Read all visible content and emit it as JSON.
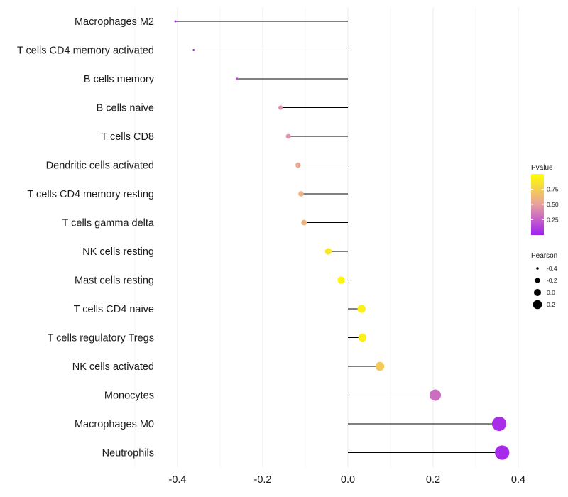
{
  "chart_data": {
    "type": "lollipop",
    "categories": [
      "Macrophages M2",
      "T cells CD4 memory activated",
      "B cells memory",
      "B cells naive",
      "T cells CD8",
      "Dendritic cells activated",
      "T cells CD4 memory resting",
      "T cells gamma delta",
      "NK cells resting",
      "Mast cells resting",
      "T cells CD4 naive",
      "T cells regulatory  Tregs",
      "NK cells activated",
      "Monocytes",
      "Macrophages M0",
      "Neutrophils"
    ],
    "pearson": [
      -0.405,
      -0.362,
      -0.26,
      -0.158,
      -0.14,
      -0.117,
      -0.11,
      -0.103,
      -0.046,
      -0.016,
      0.032,
      0.034,
      0.075,
      0.205,
      0.355,
      0.362
    ],
    "pvalue": [
      0.02,
      0.05,
      0.2,
      0.45,
      0.45,
      0.55,
      0.58,
      0.6,
      0.88,
      0.95,
      0.92,
      0.92,
      0.72,
      0.3,
      0.05,
      0.04
    ],
    "xlim": [
      -0.4,
      0.4
    ],
    "xticks": [
      -0.4,
      -0.2,
      0.0,
      0.2,
      0.4
    ],
    "xtick_labels": [
      "-0.4",
      "-0.2",
      "0.0",
      "0.2",
      "0.4"
    ],
    "grid": true,
    "legend_color": {
      "title": "Pvalue",
      "ticks": [
        0.25,
        0.5,
        0.75
      ],
      "labels": [
        "0.25",
        "0.50",
        "0.75"
      ],
      "range": [
        0.0,
        1.0
      ],
      "colors": [
        "#A020F0",
        "#E8A0A0",
        "#FFFF00"
      ]
    },
    "legend_size": {
      "title": "Pearson",
      "values": [
        -0.4,
        -0.2,
        0.0,
        0.2
      ],
      "labels": [
        "-0.4",
        "-0.2",
        "0.0",
        "0.2"
      ]
    }
  }
}
